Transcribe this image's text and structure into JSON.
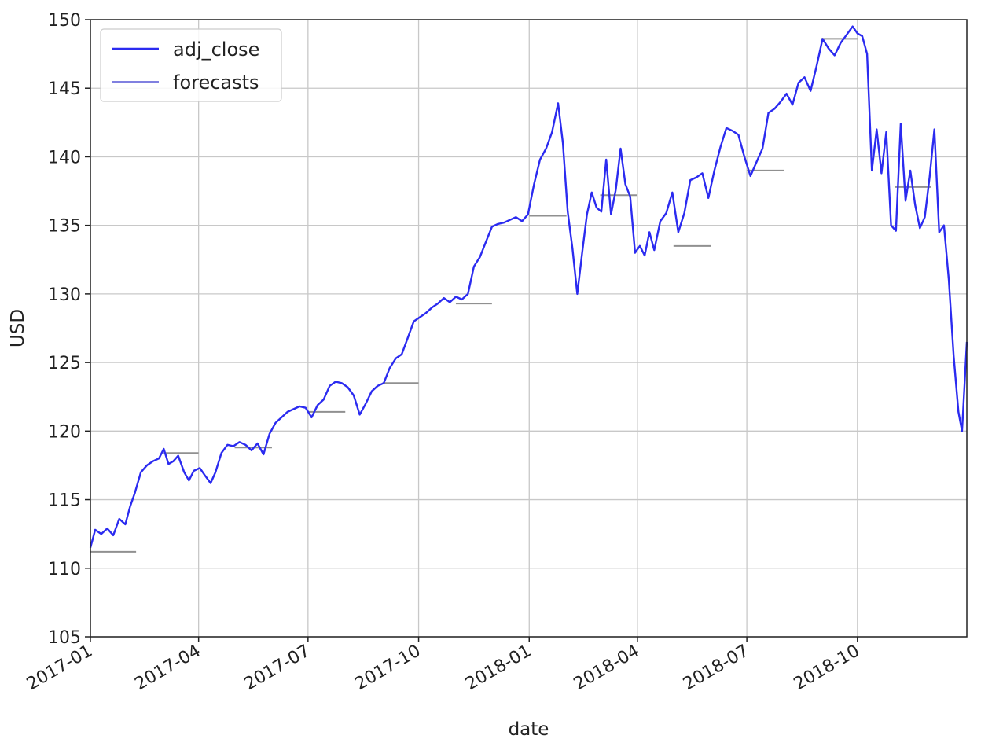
{
  "chart_data": {
    "type": "line",
    "xlabel": "date",
    "ylabel": "USD",
    "xlim": [
      "2017-01-01",
      "2018-12-31"
    ],
    "ylim": [
      105,
      150
    ],
    "grid": true,
    "legend_position": "top-left",
    "x_ticks": [
      "2017-01",
      "2017-04",
      "2017-07",
      "2017-10",
      "2018-01",
      "2018-04",
      "2018-07",
      "2018-10"
    ],
    "y_ticks": [
      105,
      110,
      115,
      120,
      125,
      130,
      135,
      140,
      145,
      150
    ],
    "colors": {
      "adj_close": "#2b2bf0",
      "forecasts": "#8080e0",
      "forecast_segment": "#909090"
    },
    "series": [
      {
        "name": "adj_close",
        "x": [
          "2017-01-01",
          "2017-01-05",
          "2017-01-10",
          "2017-01-15",
          "2017-01-20",
          "2017-01-25",
          "2017-01-30",
          "2017-02-03",
          "2017-02-07",
          "2017-02-12",
          "2017-02-17",
          "2017-02-22",
          "2017-02-27",
          "2017-03-03",
          "2017-03-07",
          "2017-03-11",
          "2017-03-15",
          "2017-03-20",
          "2017-03-24",
          "2017-03-28",
          "2017-04-02",
          "2017-04-06",
          "2017-04-11",
          "2017-04-15",
          "2017-04-20",
          "2017-04-25",
          "2017-04-30",
          "2017-05-05",
          "2017-05-10",
          "2017-05-15",
          "2017-05-20",
          "2017-05-25",
          "2017-05-30",
          "2017-06-04",
          "2017-06-09",
          "2017-06-14",
          "2017-06-19",
          "2017-06-24",
          "2017-06-29",
          "2017-07-04",
          "2017-07-09",
          "2017-07-14",
          "2017-07-19",
          "2017-07-24",
          "2017-07-29",
          "2017-08-03",
          "2017-08-08",
          "2017-08-13",
          "2017-08-18",
          "2017-08-23",
          "2017-08-28",
          "2017-09-02",
          "2017-09-07",
          "2017-09-12",
          "2017-09-17",
          "2017-09-22",
          "2017-09-27",
          "2017-10-02",
          "2017-10-07",
          "2017-10-12",
          "2017-10-17",
          "2017-10-22",
          "2017-10-27",
          "2017-11-01",
          "2017-11-06",
          "2017-11-11",
          "2017-11-16",
          "2017-11-21",
          "2017-11-26",
          "2017-12-01",
          "2017-12-06",
          "2017-12-11",
          "2017-12-16",
          "2017-12-21",
          "2017-12-26",
          "2017-12-31",
          "2018-01-05",
          "2018-01-10",
          "2018-01-15",
          "2018-01-20",
          "2018-01-25",
          "2018-01-29",
          "2018-02-02",
          "2018-02-06",
          "2018-02-10",
          "2018-02-14",
          "2018-02-18",
          "2018-02-22",
          "2018-02-26",
          "2018-03-02",
          "2018-03-06",
          "2018-03-10",
          "2018-03-14",
          "2018-03-18",
          "2018-03-22",
          "2018-03-26",
          "2018-03-30",
          "2018-04-03",
          "2018-04-07",
          "2018-04-11",
          "2018-04-15",
          "2018-04-20",
          "2018-04-25",
          "2018-04-30",
          "2018-05-05",
          "2018-05-10",
          "2018-05-15",
          "2018-05-20",
          "2018-05-25",
          "2018-05-30",
          "2018-06-04",
          "2018-06-09",
          "2018-06-14",
          "2018-06-19",
          "2018-06-24",
          "2018-06-29",
          "2018-07-04",
          "2018-07-09",
          "2018-07-14",
          "2018-07-19",
          "2018-07-24",
          "2018-07-29",
          "2018-08-03",
          "2018-08-08",
          "2018-08-13",
          "2018-08-18",
          "2018-08-23",
          "2018-08-28",
          "2018-09-02",
          "2018-09-07",
          "2018-09-12",
          "2018-09-17",
          "2018-09-22",
          "2018-09-27",
          "2018-10-01",
          "2018-10-05",
          "2018-10-09",
          "2018-10-13",
          "2018-10-17",
          "2018-10-21",
          "2018-10-25",
          "2018-10-29",
          "2018-11-02",
          "2018-11-06",
          "2018-11-10",
          "2018-11-14",
          "2018-11-18",
          "2018-11-22",
          "2018-11-26",
          "2018-11-30",
          "2018-12-04",
          "2018-12-08",
          "2018-12-12",
          "2018-12-16",
          "2018-12-20",
          "2018-12-24",
          "2018-12-27",
          "2018-12-31"
        ],
        "values": [
          111.5,
          112.8,
          112.5,
          112.9,
          112.4,
          113.6,
          113.2,
          114.5,
          115.5,
          117.0,
          117.5,
          117.8,
          118.0,
          118.7,
          117.6,
          117.8,
          118.2,
          117.0,
          116.4,
          117.1,
          117.3,
          116.8,
          116.2,
          117.0,
          118.4,
          119.0,
          118.9,
          119.2,
          119.0,
          118.6,
          119.1,
          118.3,
          119.8,
          120.6,
          121.0,
          121.4,
          121.6,
          121.8,
          121.7,
          121.0,
          121.9,
          122.3,
          123.3,
          123.6,
          123.5,
          123.2,
          122.6,
          121.2,
          122.0,
          122.9,
          123.3,
          123.5,
          124.6,
          125.3,
          125.6,
          126.8,
          128.0,
          128.3,
          128.6,
          129.0,
          129.3,
          129.7,
          129.4,
          129.8,
          129.6,
          130.0,
          132.0,
          132.7,
          133.8,
          134.9,
          135.1,
          135.2,
          135.4,
          135.6,
          135.3,
          135.8,
          138.0,
          139.8,
          140.6,
          141.8,
          143.9,
          141.0,
          136.0,
          133.3,
          130.0,
          133.0,
          135.8,
          137.4,
          136.3,
          136.0,
          139.8,
          135.8,
          137.6,
          140.6,
          138.0,
          137.1,
          133.0,
          133.5,
          132.8,
          134.5,
          133.2,
          135.3,
          135.9,
          137.4,
          134.5,
          135.9,
          138.3,
          138.5,
          138.8,
          137.0,
          139.0,
          140.7,
          142.1,
          141.9,
          141.6,
          140.0,
          138.6,
          139.6,
          140.6,
          143.2,
          143.5,
          144.0,
          144.6,
          143.8,
          145.4,
          145.8,
          144.8,
          146.6,
          148.6,
          147.9,
          147.4,
          148.3,
          148.9,
          149.5,
          149.0,
          148.8,
          147.5,
          139.0,
          142.0,
          138.8,
          141.8,
          135.0,
          134.6,
          142.4,
          136.8,
          139.0,
          136.5,
          134.8,
          135.6,
          138.5,
          142.0,
          134.5,
          135.0,
          131.0,
          125.5,
          121.4,
          120.0,
          126.5
        ]
      },
      {
        "name": "forecasts",
        "segments": [
          {
            "x": [
              "2017-01-01",
              "2017-02-08"
            ],
            "value": 111.2
          },
          {
            "x": [
              "2017-03-03",
              "2017-04-01"
            ],
            "value": 118.4
          },
          {
            "x": [
              "2017-05-01",
              "2017-06-01"
            ],
            "value": 118.8
          },
          {
            "x": [
              "2017-07-01",
              "2017-08-01"
            ],
            "value": 121.4
          },
          {
            "x": [
              "2017-09-01",
              "2017-10-01"
            ],
            "value": 123.5
          },
          {
            "x": [
              "2017-11-01",
              "2017-12-01"
            ],
            "value": 129.3
          },
          {
            "x": [
              "2018-01-01",
              "2018-02-01"
            ],
            "value": 135.7
          },
          {
            "x": [
              "2018-03-01",
              "2018-04-01"
            ],
            "value": 137.2
          },
          {
            "x": [
              "2018-05-01",
              "2018-06-01"
            ],
            "value": 133.5
          },
          {
            "x": [
              "2018-07-01",
              "2018-08-01"
            ],
            "value": 139.0
          },
          {
            "x": [
              "2018-09-01",
              "2018-10-01"
            ],
            "value": 148.6
          },
          {
            "x": [
              "2018-11-01",
              "2018-12-01"
            ],
            "value": 137.8
          }
        ]
      }
    ]
  }
}
